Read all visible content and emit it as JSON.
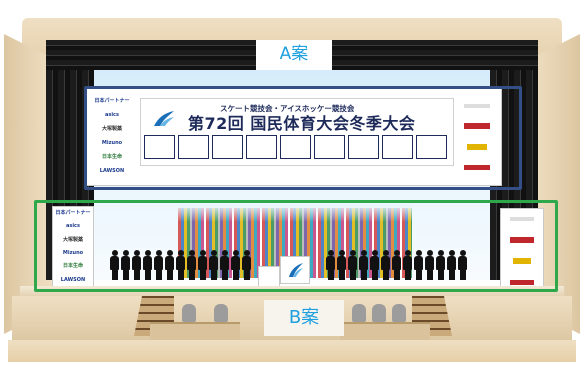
{
  "labels": {
    "plan_a": "A案",
    "plan_b": "B案"
  },
  "banner": {
    "subtitle": "スケート競技会・アイスホッケー競技会",
    "title": "第72回 国民体育大会冬季大会"
  },
  "sponsors_left": [
    "日本パートナー",
    "asics",
    "大塚製薬",
    "Mizuno",
    "日本生命",
    "LAWSON"
  ],
  "colors": {
    "plan_a_frame": "#334f85",
    "plan_b_frame": "#2ea84a",
    "label_text": "#1ea0df",
    "title_text": "#1d2a5a"
  }
}
